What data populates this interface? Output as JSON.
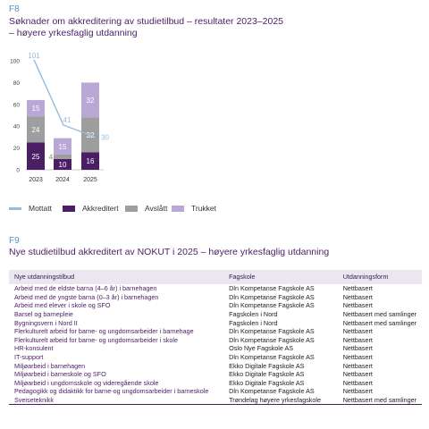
{
  "f8": {
    "label": "F8",
    "title_line1": "Søknader om akkreditering av studietilbud – resultater 2023–2025",
    "title_line2": "– høyere yrkesfaglig utdanning"
  },
  "chart_data": {
    "type": "bar",
    "stacked": true,
    "categories": [
      "2023",
      "2024",
      "2025"
    ],
    "ylim": [
      0,
      100
    ],
    "yticks": [
      0,
      20,
      40,
      60,
      80,
      100
    ],
    "series": [
      {
        "name": "Akkreditert",
        "values": [
          25,
          10,
          16
        ],
        "color": "#4b1e64"
      },
      {
        "name": "Avslått",
        "values": [
          24,
          4,
          32
        ],
        "color": "#9e9e9e"
      },
      {
        "name": "Trukket",
        "values": [
          15,
          15,
          32
        ],
        "color": "#b9a7d6"
      }
    ],
    "line": {
      "name": "Mottatt",
      "values": [
        101,
        41,
        30
      ],
      "color": "#93bde0"
    },
    "legend": [
      "Mottatt",
      "Akkreditert",
      "Avslått",
      "Trukket"
    ],
    "legend_position": "bottom"
  },
  "f9": {
    "label": "F9",
    "title": "Nye studietilbud akkreditert av NOKUT i 2025 – høyere yrkesfaglig utdanning",
    "headers": [
      "Nye utdanningstilbud",
      "Fagskole",
      "Utdanningsform"
    ],
    "rows": [
      [
        "Arbeid med de eldste barna (4–6 år) i barnehagen",
        "Dln Kompetanse Fagskole AS",
        "Nettbasert"
      ],
      [
        "Arbeid med de yngste barna (0–3 år) i barnehagen",
        "Dln Kompetanse Fagskole AS",
        "Nettbasert"
      ],
      [
        "Arbeid med elever i skole og SFO",
        "Dln Kompetanse Fagskole AS",
        "Nettbasert"
      ],
      [
        "Barsel og barnepleie",
        "Fagskolen i Nord",
        "Nettbasert med samlinger"
      ],
      [
        "Bygningsvern i Nord II",
        "Fagskolen i Nord",
        "Nettbasert med samlinger"
      ],
      [
        "Flerkulturelt arbeid for barne- og ungdomsarbeider i barnehage",
        "Dln Kompetanse Fagskole AS",
        "Nettbasert"
      ],
      [
        "Flerkulturelt arbeid for barne- og ungdomsarbeider i skole",
        "Dln Kompetanse Fagskole AS",
        "Nettbasert"
      ],
      [
        "HR-konsulent",
        "Oslo Nye Fagskole AS",
        "Nettbasert"
      ],
      [
        "IT-support",
        "Dln Kompetanse Fagskole AS",
        "Nettbasert"
      ],
      [
        "Miljøarbeid i barnehagen",
        "Ekko Digitale Fagskole AS",
        "Nettbasert"
      ],
      [
        "Miljøarbeid i barneskole og SFO",
        "Ekko Digitale Fagskole AS",
        "Nettbasert"
      ],
      [
        "Miljøarbeid i ungdomsskole og videregående skole",
        "Ekko Digitale Fagskole AS",
        "Nettbasert"
      ],
      [
        "Pedagogikk og didaktikk for barne-og ungdomsarbeider i barneskole",
        "Dln Kompetanse Fagskole AS",
        "Nettbasert"
      ],
      [
        "Sveiseteknikk",
        "Trøndelag høyere yrkesfagskole",
        "Nettbasert med samlinger"
      ]
    ]
  }
}
